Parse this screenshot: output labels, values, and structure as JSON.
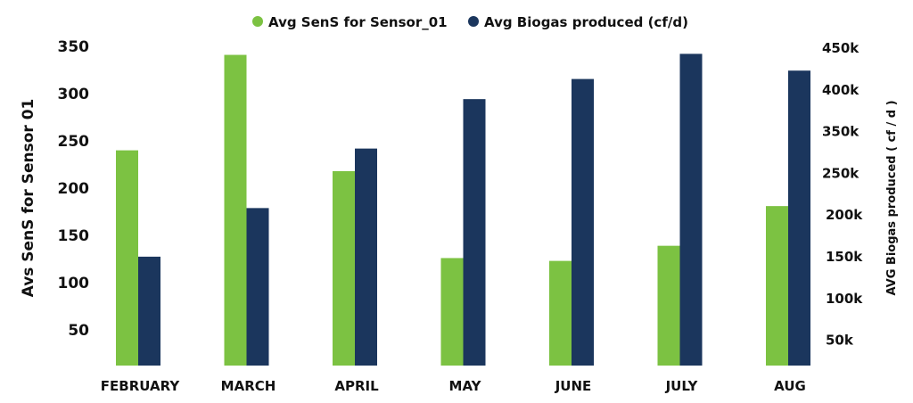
{
  "chart_data": {
    "type": "bar",
    "categories": [
      "FEBRUARY",
      "MARCH",
      "APRIL",
      "MAY",
      "JUNE",
      "JULY",
      "AUG"
    ],
    "series": [
      {
        "name": "Avg SenS for Sensor_01",
        "axis": "left",
        "color": "#7cc242",
        "values": [
          240,
          341,
          218,
          126,
          123,
          139,
          181
        ]
      },
      {
        "name": "Avg Biogas produced (cf/d)",
        "axis": "right",
        "color": "#1b365d",
        "values": [
          148000,
          206000,
          277000,
          336000,
          360000,
          390000,
          370000
        ]
      }
    ],
    "ylabel": "Avs SenS for Sensor 01",
    "y2label": "AVG Biogas produced ( cf / d )",
    "yticks": [
      "350",
      "300",
      "250",
      "200",
      "150",
      "100",
      "50"
    ],
    "y2ticks": [
      "450k",
      "400k",
      "350k",
      "250k",
      "200k",
      "150k",
      "100k",
      "50k"
    ],
    "legend": "top",
    "grid": false
  }
}
